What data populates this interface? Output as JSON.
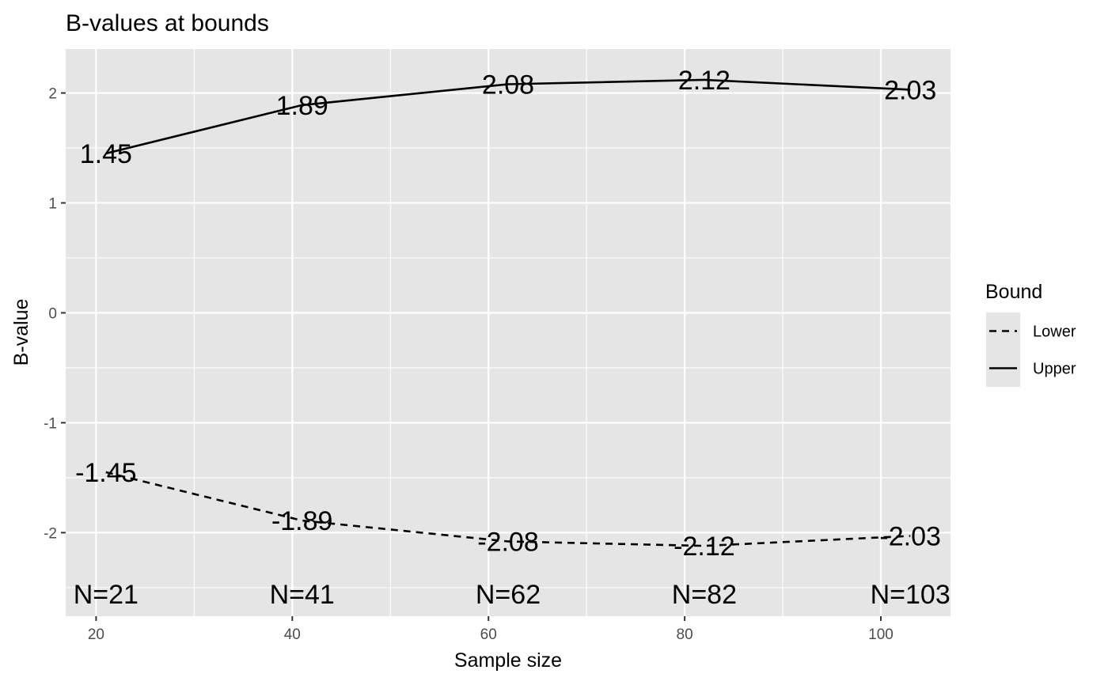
{
  "chart_data": {
    "type": "line",
    "title": "B-values at bounds",
    "xlabel": "Sample size",
    "ylabel": "B-value",
    "x": [
      21,
      41,
      62,
      82,
      103
    ],
    "xlim": [
      16.9,
      107.1
    ],
    "ylim": [
      -2.76,
      2.4
    ],
    "x_ticks": [
      20,
      40,
      60,
      80,
      100
    ],
    "y_ticks": [
      -2,
      -1,
      0,
      1,
      2
    ],
    "x_minor": [
      30,
      50,
      70,
      90
    ],
    "y_minor": [
      -2.5,
      -1.5,
      -0.5,
      0.5,
      1.5
    ],
    "grid": true,
    "series": [
      {
        "name": "Lower",
        "linetype": "dashed",
        "values": [
          -1.45,
          -1.89,
          -2.08,
          -2.12,
          -2.03
        ],
        "labels": [
          "-1.45",
          "-1.89",
          "-2.08",
          "-2.12",
          "-2.03"
        ]
      },
      {
        "name": "Upper",
        "linetype": "solid",
        "values": [
          1.45,
          1.89,
          2.08,
          2.12,
          2.03
        ],
        "labels": [
          "1.45",
          "1.89",
          "2.08",
          "2.12",
          "2.03"
        ]
      }
    ],
    "n_labels": [
      "N=21",
      "N=41",
      "N=62",
      "N=82",
      "N=103"
    ],
    "n_label_y": -2.56,
    "legend": {
      "title": "Bound",
      "position": "right",
      "items": [
        "Lower",
        "Upper"
      ]
    },
    "colors": {
      "panel": "#e5e5e5",
      "grid": "#ffffff",
      "line": "#000000",
      "tick_text": "#4d4d4d"
    }
  }
}
